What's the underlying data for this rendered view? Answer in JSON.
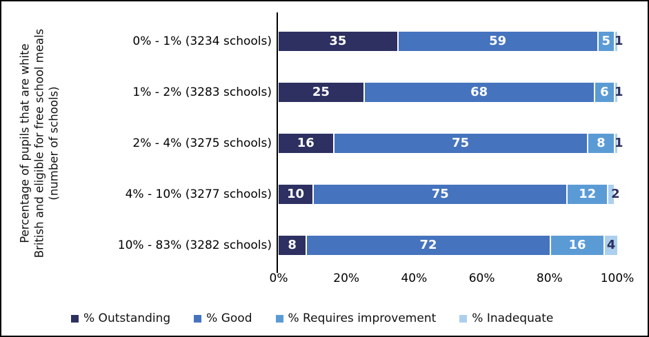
{
  "chart_data": {
    "type": "bar",
    "orientation": "horizontal",
    "stacked": true,
    "title": "",
    "ylabel_lines": [
      "Percentage of pupils that are white",
      "British and eligible for free school meals",
      "(number of schools)"
    ],
    "categories": [
      "0% - 1% (3234 schools)",
      "1% - 2% (3283 schools)",
      "2% - 4% (3275 schools)",
      "4% - 10% (3277 schools)",
      "10% - 83% (3282 schools)"
    ],
    "series": [
      {
        "name": "% Outstanding",
        "color": "#2d3060",
        "values": [
          35,
          25,
          16,
          10,
          8
        ]
      },
      {
        "name": "% Good",
        "color": "#4573be",
        "values": [
          59,
          68,
          75,
          75,
          72
        ]
      },
      {
        "name": "% Requires improvement",
        "color": "#5b9bd5",
        "values": [
          5,
          6,
          8,
          12,
          16
        ]
      },
      {
        "name": "% Inadequate",
        "color": "#accfee",
        "values": [
          1,
          1,
          1,
          2,
          4
        ]
      }
    ],
    "xticks": [
      "0%",
      "20%",
      "40%",
      "60%",
      "80%",
      "100%"
    ],
    "xlim": [
      0,
      100
    ],
    "grid": false,
    "legend_position": "bottom",
    "inside_label_color": "#ffffff",
    "outside_label_color": "#2d3060",
    "axis_color": "#000000"
  }
}
